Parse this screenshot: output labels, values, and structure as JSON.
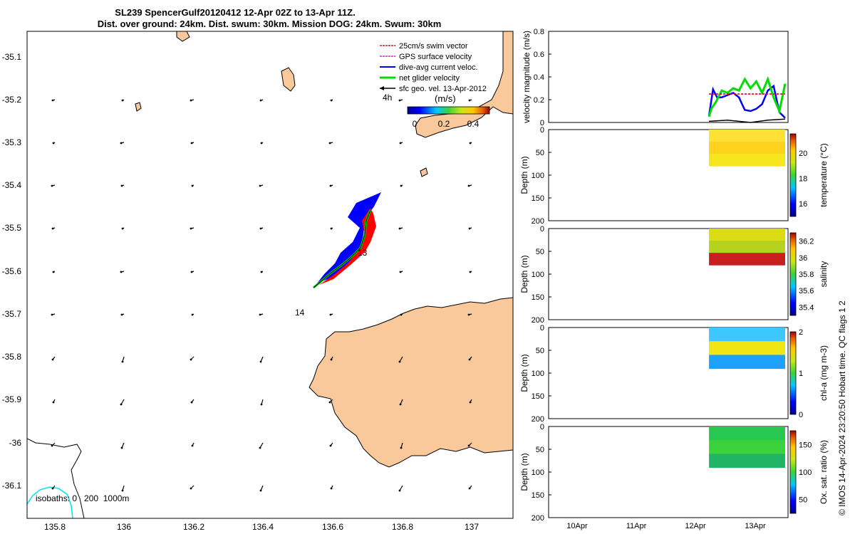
{
  "title": {
    "line1": "SL239 SpencerGulf20120412 12-Apr 02Z to 13-Apr 11Z.",
    "line2": "Dist. over ground: 24km. Dist. swum: 30km. Mission DOG: 24km. Swum: 30km"
  },
  "map": {
    "lat_ticks": [
      "-35.1",
      "-35.2",
      "-35.3",
      "-35.4",
      "-35.5",
      "-35.6",
      "-35.7",
      "-35.8",
      "-35.9",
      "-36",
      "-36.1"
    ],
    "lon_ticks": [
      "135.8",
      "136",
      "136.2",
      "136.4",
      "136.6",
      "136.8",
      "137"
    ],
    "legend": [
      {
        "label": "25cm/s swim vector",
        "color": "#ff0000"
      },
      {
        "label": "GPS surface velocity",
        "color": "#ff00ff"
      },
      {
        "label": "dive-avg current veloc.",
        "color": "#0000ff"
      },
      {
        "label": "net glider velocity",
        "color": "#00dd00"
      },
      {
        "label": "sfc geo. vel. 13-Apr-2012",
        "color": "#000000"
      }
    ],
    "scale_label": "4h",
    "colorbar": {
      "unit": "(m/s)",
      "ticks": [
        "0",
        "0.2",
        "0.4"
      ]
    },
    "day_labels": [
      "13",
      "14"
    ],
    "isobaths_label": "isobaths: 0   200  1000m",
    "land_color": "#f9c89b",
    "swim_color": "#ff0000",
    "current_color": "#0000ff",
    "net_color": "#00dd00"
  },
  "velocity_panel": {
    "ylabel": "velocity magnitude (m/s)",
    "yticks": [
      "0",
      "0.2",
      "0.4",
      "0.6",
      "0.8"
    ]
  },
  "depth_panels": {
    "ylabel": "Depth (m)",
    "yticks": [
      "0",
      "50",
      "100",
      "150",
      "200"
    ],
    "time_ticks": [
      "10Apr",
      "11Apr",
      "12Apr",
      "13Apr"
    ]
  },
  "chart_data": [
    {
      "type": "line",
      "title": "",
      "ylabel": "velocity magnitude (m/s)",
      "ylim": [
        0,
        0.8
      ],
      "x_unit": "days (April 2012)",
      "xlim": [
        9.3,
        13.45
      ],
      "series": [
        {
          "name": "dive-avg current veloc.",
          "color": "#0000ff",
          "x": [
            12.08,
            12.15,
            12.22,
            12.3,
            12.4,
            12.5,
            12.6,
            12.7,
            12.8,
            12.9,
            13.0,
            13.1,
            13.2,
            13.3,
            13.4
          ],
          "y": [
            0.06,
            0.29,
            0.22,
            0.22,
            0.24,
            0.26,
            0.22,
            0.11,
            0.1,
            0.12,
            0.16,
            0.28,
            0.32,
            0.09,
            0.04
          ]
        },
        {
          "name": "net glider velocity",
          "color": "#00dd00",
          "x": [
            12.08,
            12.12,
            12.2,
            12.3,
            12.4,
            12.5,
            12.6,
            12.7,
            12.8,
            12.9,
            13.0,
            13.1,
            13.2,
            13.3,
            13.4
          ],
          "y": [
            0.05,
            0.12,
            0.18,
            0.28,
            0.26,
            0.3,
            0.28,
            0.38,
            0.3,
            0.36,
            0.26,
            0.38,
            0.22,
            0.1,
            0.34
          ]
        },
        {
          "name": "GPS surface velocity",
          "color": "#ff00ff",
          "x": [
            12.08,
            13.4
          ],
          "y": [
            0.25,
            0.25
          ]
        },
        {
          "name": "25cm/s swim vector",
          "color": "#ff0000",
          "x": [
            12.08,
            13.4
          ],
          "y": [
            0.25,
            0.25
          ]
        },
        {
          "name": "sfc geo. vel. 13-Apr-2012",
          "color": "#000000",
          "x": [
            12.08,
            12.4,
            12.8,
            13.1,
            13.4
          ],
          "y": [
            0.01,
            0.02,
            0.0,
            0.02,
            0.03
          ]
        }
      ]
    },
    {
      "type": "heatmap",
      "ylabel": "Depth (m)",
      "ylim": [
        0,
        200
      ],
      "colorbar_label": "temperature (°C)",
      "colorbar_ticks": [
        "16",
        "18",
        "20"
      ],
      "crange": [
        15,
        21.5
      ],
      "x_range": [
        12.08,
        13.4
      ],
      "y_range": [
        0,
        80
      ],
      "value_approx": 20.5
    },
    {
      "type": "heatmap",
      "ylabel": "Depth (m)",
      "ylim": [
        0,
        200
      ],
      "colorbar_label": "salinity",
      "colorbar_ticks": [
        "35.4",
        "35.6",
        "35.8",
        "36",
        "36.2"
      ],
      "crange": [
        35.3,
        36.3
      ],
      "x_range": [
        12.08,
        13.4
      ],
      "y_range": [
        0,
        80
      ],
      "value_approx": 36.0
    },
    {
      "type": "heatmap",
      "ylabel": "Depth (m)",
      "ylim": [
        0,
        200
      ],
      "colorbar_label": "chl-a (mg m-3)",
      "colorbar_ticks": [
        "0",
        "1",
        "2"
      ],
      "crange": [
        0,
        2
      ],
      "x_range": [
        12.08,
        13.4
      ],
      "y_range": [
        0,
        90
      ],
      "value_approx": 1.0
    },
    {
      "type": "heatmap",
      "ylabel": "Depth (m)",
      "ylim": [
        0,
        200
      ],
      "colorbar_label": "Ox. sat. ratio (%)",
      "colorbar_ticks": [
        "50",
        "100",
        "150"
      ],
      "crange": [
        25,
        175
      ],
      "x_range": [
        12.08,
        13.4
      ],
      "y_range": [
        0,
        90
      ],
      "value_approx": 112
    }
  ],
  "side_note": "© IMOS 14-Apr-2024 23:20:50 Hobart time. QC flags 1  2"
}
